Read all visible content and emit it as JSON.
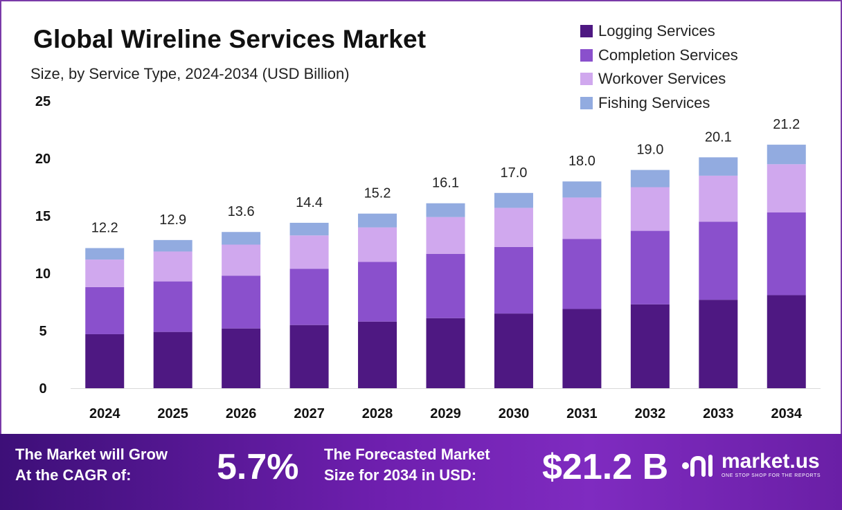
{
  "header": {
    "title": "Global Wireline Services Market",
    "subtitle": "Size, by Service Type, 2024-2034 (USD Billion)"
  },
  "colors": {
    "logging": "#4e1882",
    "completion": "#8a50cc",
    "workover": "#d0a8ee",
    "fishing": "#92abe0",
    "frame": "#7a3aa8"
  },
  "chart_data": {
    "type": "bar",
    "stacked": true,
    "categories": [
      "2024",
      "2025",
      "2026",
      "2027",
      "2028",
      "2029",
      "2030",
      "2031",
      "2032",
      "2033",
      "2034"
    ],
    "series": [
      {
        "name": "Logging Services",
        "color": "#4e1882",
        "values": [
          4.7,
          4.9,
          5.2,
          5.5,
          5.8,
          6.1,
          6.5,
          6.9,
          7.3,
          7.7,
          8.1
        ]
      },
      {
        "name": "Completion Services",
        "color": "#8a50cc",
        "values": [
          4.1,
          4.4,
          4.6,
          4.9,
          5.2,
          5.6,
          5.8,
          6.1,
          6.4,
          6.8,
          7.2
        ]
      },
      {
        "name": "Workover Services",
        "color": "#d0a8ee",
        "values": [
          2.4,
          2.6,
          2.7,
          2.9,
          3.0,
          3.2,
          3.4,
          3.6,
          3.8,
          4.0,
          4.2
        ]
      },
      {
        "name": "Fishing Services",
        "color": "#92abe0",
        "values": [
          1.0,
          1.0,
          1.1,
          1.1,
          1.2,
          1.2,
          1.3,
          1.4,
          1.5,
          1.6,
          1.7
        ]
      }
    ],
    "totals": [
      "12.2",
      "12.9",
      "13.6",
      "14.4",
      "15.2",
      "16.1",
      "17.0",
      "18.0",
      "19.0",
      "20.1",
      "21.2"
    ],
    "ylim": [
      0,
      25
    ],
    "yticks": [
      "0",
      "5",
      "10",
      "15",
      "20",
      "25"
    ],
    "grid": false,
    "legend_position": "top-right"
  },
  "footer": {
    "cagr_label_line1": "The Market will Grow",
    "cagr_label_line2": "At the CAGR of:",
    "cagr_value": "5.7%",
    "forecast_label_line1": "The Forecasted Market",
    "forecast_label_line2": "Size for 2034 in USD:",
    "forecast_value": "$21.2 B",
    "brand_name": "market.us",
    "brand_tagline": "ONE STOP SHOP FOR THE REPORTS"
  }
}
